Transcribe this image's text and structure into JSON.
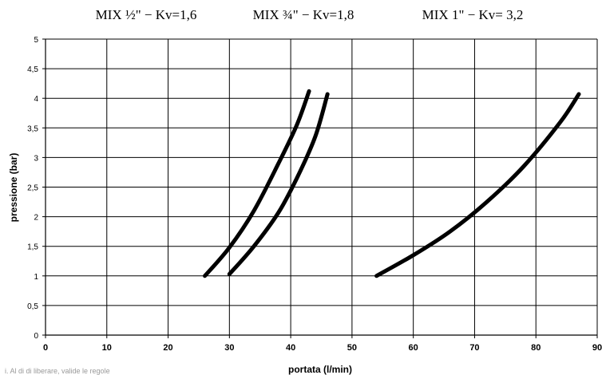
{
  "titles": [
    "MIX ½\" − Kv=1,6",
    "MIX ¾\" − Kv=1,8",
    "MIX 1\"  − Kv= 3,2"
  ],
  "chart_data": {
    "type": "line",
    "xlabel": "portata (l/min)",
    "ylabel": "pressione (bar)",
    "xlim": [
      0,
      90
    ],
    "ylim": [
      0,
      5
    ],
    "x_ticks": [
      "0",
      "10",
      "20",
      "30",
      "40",
      "50",
      "60",
      "70",
      "80",
      "90"
    ],
    "y_ticks": [
      "0",
      "0,5",
      "1",
      "1,5",
      "2",
      "2,5",
      "3",
      "3,5",
      "4",
      "4,5",
      "5"
    ],
    "grid": true,
    "series_color": "#000000",
    "series": [
      {
        "x": [
          26,
          30,
          34,
          38,
          41,
          43
        ],
        "y": [
          1.0,
          1.48,
          2.1,
          2.9,
          3.55,
          4.12
        ]
      },
      {
        "x": [
          30,
          34,
          38,
          41,
          44,
          46
        ],
        "y": [
          1.03,
          1.5,
          2.07,
          2.65,
          3.35,
          4.07
        ]
      },
      {
        "x": [
          54,
          60,
          66,
          72,
          78,
          84,
          87
        ],
        "y": [
          1.0,
          1.35,
          1.75,
          2.25,
          2.85,
          3.6,
          4.07
        ]
      }
    ]
  },
  "footnote": "i. Al di di liberare, valide le regole"
}
